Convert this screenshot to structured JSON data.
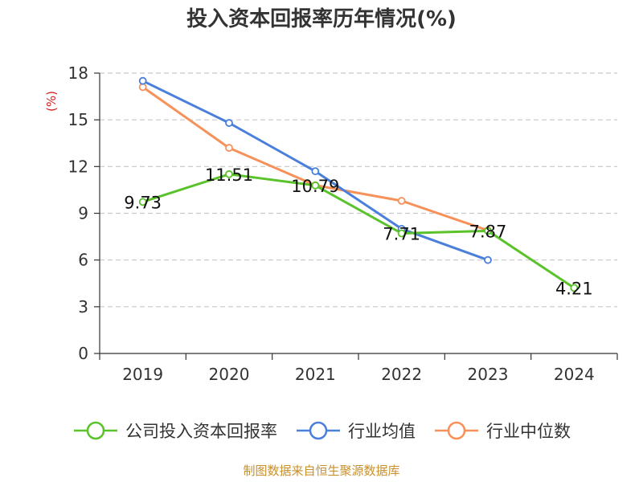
{
  "chart_data": {
    "type": "line",
    "title": "投入资本回报率历年情况(%)",
    "ylabel": "(%)",
    "xlabel": "",
    "categories": [
      "2019",
      "2020",
      "2021",
      "2022",
      "2023",
      "2024"
    ],
    "ylim": [
      0,
      18
    ],
    "yticks": [
      0,
      3,
      6,
      9,
      12,
      15,
      18
    ],
    "grid": true,
    "legend_position": "bottom",
    "series": [
      {
        "name": "公司投入资本回报率",
        "color": "#5ac22a",
        "values": [
          9.73,
          11.51,
          10.79,
          7.71,
          7.87,
          4.21
        ],
        "labels": [
          "9.73",
          "11.51",
          "10.79",
          "7.71",
          "7.87",
          "4.21"
        ]
      },
      {
        "name": "行业均值",
        "color": "#4a7fdb",
        "values": [
          17.5,
          14.8,
          11.7,
          8.0,
          6.0,
          null
        ]
      },
      {
        "name": "行业中位数",
        "color": "#f7915a",
        "values": [
          17.1,
          13.2,
          10.8,
          9.8,
          7.9,
          null
        ]
      }
    ]
  },
  "footer": "制图数据来自恒生聚源数据库"
}
